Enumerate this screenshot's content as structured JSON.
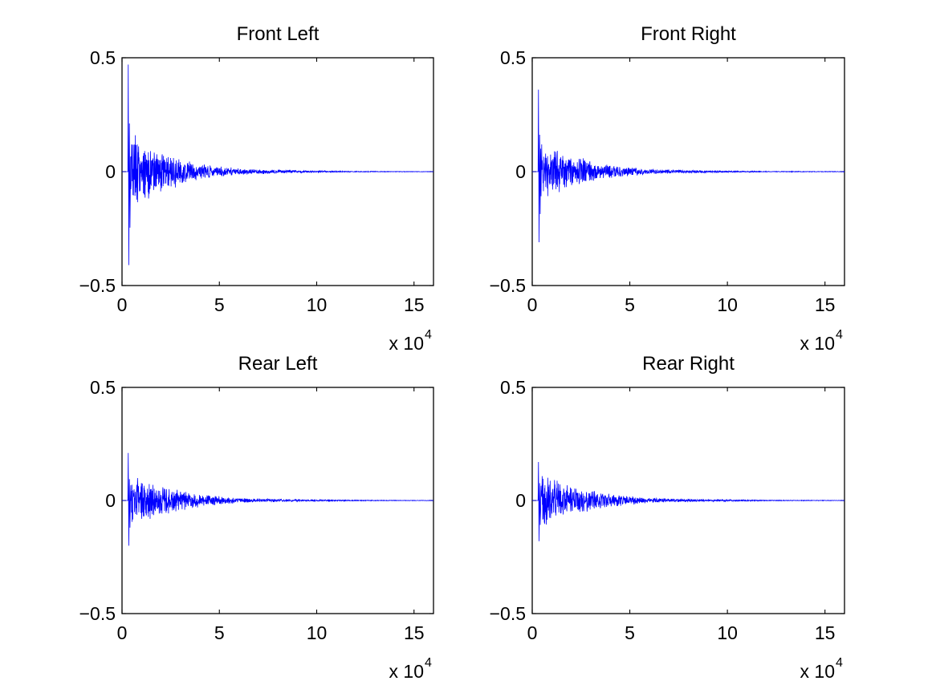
{
  "chart_data": [
    {
      "type": "line",
      "title": "Front Left",
      "xlabel": "",
      "ylabel": "",
      "xlim": [
        0,
        160000
      ],
      "ylim": [
        -0.5,
        0.5
      ],
      "x_ticks": [
        "0",
        "5",
        "10",
        "15"
      ],
      "y_ticks": [
        "0.5",
        "0",
        "−0.5"
      ],
      "x_multiplier": {
        "base": "x 10",
        "exponent": "4"
      },
      "color": "#0000ff",
      "grid": false,
      "signal": {
        "onset": 3000,
        "peak_pos": 0.47,
        "peak_neg": -0.41,
        "envelope": [
          [
            3000,
            0.2
          ],
          [
            10000,
            0.14
          ],
          [
            20000,
            0.09
          ],
          [
            40000,
            0.035
          ],
          [
            60000,
            0.015
          ],
          [
            90000,
            0.006
          ],
          [
            120000,
            0.002
          ],
          [
            160000,
            0.001
          ]
        ]
      }
    },
    {
      "type": "line",
      "title": "Front Right",
      "xlabel": "",
      "ylabel": "",
      "xlim": [
        0,
        160000
      ],
      "ylim": [
        -0.5,
        0.5
      ],
      "x_ticks": [
        "0",
        "5",
        "10",
        "15"
      ],
      "y_ticks": [
        "0.5",
        "0",
        "−0.5"
      ],
      "x_multiplier": {
        "base": "x 10",
        "exponent": "4"
      },
      "color": "#0000ff",
      "grid": false,
      "signal": {
        "onset": 3000,
        "peak_pos": 0.36,
        "peak_neg": -0.31,
        "envelope": [
          [
            3000,
            0.14
          ],
          [
            10000,
            0.11
          ],
          [
            20000,
            0.075
          ],
          [
            40000,
            0.03
          ],
          [
            60000,
            0.013
          ],
          [
            90000,
            0.005
          ],
          [
            120000,
            0.002
          ],
          [
            160000,
            0.001
          ]
        ]
      }
    },
    {
      "type": "line",
      "title": "Rear Left",
      "xlabel": "",
      "ylabel": "",
      "xlim": [
        0,
        160000
      ],
      "ylim": [
        -0.5,
        0.5
      ],
      "x_ticks": [
        "0",
        "5",
        "10",
        "15"
      ],
      "y_ticks": [
        "0.5",
        "0",
        "−0.5"
      ],
      "x_multiplier": {
        "base": "x 10",
        "exponent": "4"
      },
      "color": "#0000ff",
      "grid": false,
      "signal": {
        "onset": 3000,
        "peak_pos": 0.21,
        "peak_neg": -0.2,
        "envelope": [
          [
            3000,
            0.12
          ],
          [
            10000,
            0.1
          ],
          [
            20000,
            0.07
          ],
          [
            40000,
            0.03
          ],
          [
            60000,
            0.012
          ],
          [
            90000,
            0.005
          ],
          [
            120000,
            0.002
          ],
          [
            160000,
            0.001
          ]
        ]
      }
    },
    {
      "type": "line",
      "title": "Rear Right",
      "xlabel": "",
      "ylabel": "",
      "xlim": [
        0,
        160000
      ],
      "ylim": [
        -0.5,
        0.5
      ],
      "x_ticks": [
        "0",
        "5",
        "10",
        "15"
      ],
      "y_ticks": [
        "0.5",
        "0",
        "−0.5"
      ],
      "x_multiplier": {
        "base": "x 10",
        "exponent": "4"
      },
      "color": "#0000ff",
      "grid": false,
      "signal": {
        "onset": 3000,
        "peak_pos": 0.17,
        "peak_neg": -0.18,
        "envelope": [
          [
            3000,
            0.13
          ],
          [
            10000,
            0.1
          ],
          [
            20000,
            0.07
          ],
          [
            40000,
            0.03
          ],
          [
            60000,
            0.012
          ],
          [
            90000,
            0.005
          ],
          [
            120000,
            0.002
          ],
          [
            160000,
            0.001
          ]
        ]
      }
    }
  ]
}
